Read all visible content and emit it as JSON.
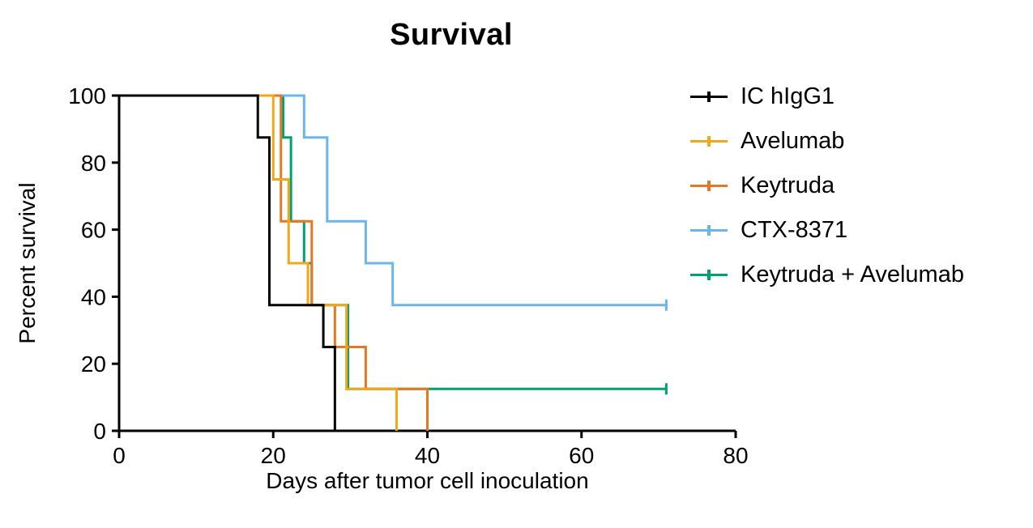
{
  "chart_data": {
    "type": "line",
    "subtype": "kaplan-meier-step-survival",
    "title": "Survival",
    "xlabel": "Days after tumor cell inoculation",
    "ylabel": "Percent survival",
    "xlim": [
      0,
      80
    ],
    "ylim": [
      0,
      100
    ],
    "x_ticks": [
      0,
      20,
      40,
      60,
      80
    ],
    "y_ticks": [
      0,
      20,
      40,
      60,
      80,
      100
    ],
    "grid": false,
    "legend_position": "right",
    "axis_color": "#000000",
    "series": [
      {
        "name": "IC hIgG1",
        "color": "#000000",
        "points": [
          [
            0,
            100
          ],
          [
            18,
            100
          ],
          [
            18,
            87.5
          ],
          [
            19.5,
            87.5
          ],
          [
            19.5,
            37.5
          ],
          [
            26.5,
            37.5
          ],
          [
            26.5,
            25
          ],
          [
            28,
            25
          ],
          [
            28,
            0
          ]
        ],
        "censored": []
      },
      {
        "name": "Avelumab",
        "color": "#F2A71B",
        "points": [
          [
            0,
            100
          ],
          [
            20,
            100
          ],
          [
            20,
            75
          ],
          [
            22,
            75
          ],
          [
            22,
            50
          ],
          [
            24.5,
            50
          ],
          [
            24.5,
            37.5
          ],
          [
            29.5,
            37.5
          ],
          [
            29.5,
            12.5
          ],
          [
            36,
            12.5
          ],
          [
            36,
            0
          ]
        ],
        "censored": []
      },
      {
        "name": "Keytruda",
        "color": "#E87722",
        "points": [
          [
            0,
            100
          ],
          [
            21,
            100
          ],
          [
            21,
            62.5
          ],
          [
            25,
            62.5
          ],
          [
            25,
            37.5
          ],
          [
            28,
            37.5
          ],
          [
            28,
            25
          ],
          [
            32,
            25
          ],
          [
            32,
            12.5
          ],
          [
            40,
            12.5
          ],
          [
            40,
            0
          ]
        ],
        "censored": []
      },
      {
        "name": "CTX-8371",
        "color": "#6CB5E8",
        "points": [
          [
            0,
            100
          ],
          [
            24,
            100
          ],
          [
            24,
            87.5
          ],
          [
            27,
            87.5
          ],
          [
            27,
            62.5
          ],
          [
            32,
            62.5
          ],
          [
            32,
            50
          ],
          [
            35.5,
            50
          ],
          [
            35.5,
            37.5
          ],
          [
            71,
            37.5
          ]
        ],
        "censored": [
          [
            71,
            37.5
          ]
        ]
      },
      {
        "name": "Keytruda + Avelumab",
        "color": "#00A170",
        "points": [
          [
            0,
            100
          ],
          [
            21.3,
            100
          ],
          [
            21.3,
            87.5
          ],
          [
            22.3,
            87.5
          ],
          [
            22.3,
            62.5
          ],
          [
            24,
            62.5
          ],
          [
            24,
            50
          ],
          [
            25,
            50
          ],
          [
            25,
            37.5
          ],
          [
            29.7,
            37.5
          ],
          [
            29.7,
            12.5
          ],
          [
            71,
            12.5
          ]
        ],
        "censored": [
          [
            71,
            12.5
          ]
        ]
      }
    ],
    "draw_order": [
      4,
      3,
      2,
      1,
      0
    ]
  }
}
